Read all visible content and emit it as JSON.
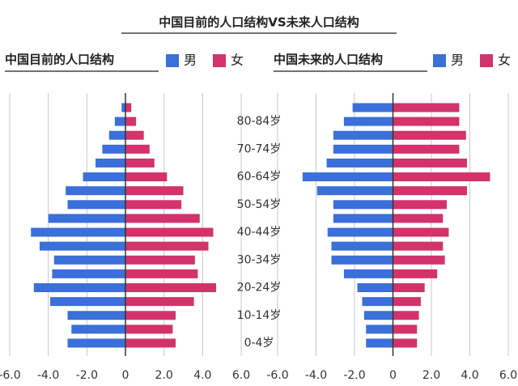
{
  "title": "中国目前的人口结构VS未来人口结构",
  "chart_data": [
    {
      "type": "bar",
      "orientation": "horizontal",
      "title": "中国目前的人口结构",
      "categories": [
        "0-4岁",
        null,
        "10-14岁",
        null,
        "20-24岁",
        null,
        "30-34岁",
        null,
        "40-44岁",
        null,
        "50-54岁",
        null,
        "60-64岁",
        null,
        "70-74岁",
        null,
        "80-84岁",
        null
      ],
      "series": [
        {
          "name": "男",
          "color": "#3b6fd9",
          "values": [
            -3.0,
            -2.8,
            -3.0,
            -3.9,
            -4.75,
            -3.8,
            -3.7,
            -4.45,
            -4.9,
            -4.0,
            -3.0,
            -3.1,
            -2.2,
            -1.55,
            -1.2,
            -0.85,
            -0.55,
            -0.2
          ]
        },
        {
          "name": "女",
          "color": "#d4326a",
          "values": [
            2.6,
            2.45,
            2.6,
            3.55,
            4.7,
            3.75,
            3.6,
            4.3,
            4.55,
            3.85,
            2.9,
            3.0,
            2.15,
            1.5,
            1.25,
            0.95,
            0.55,
            0.3
          ]
        }
      ],
      "xlim": [
        -6,
        6
      ],
      "xticks": [
        {
          "value": -6,
          "label": "-6.0"
        },
        {
          "value": -4,
          "label": "-4.0"
        },
        {
          "value": -2,
          "label": "-2.0"
        },
        0,
        {
          "value": 2,
          "label": "2.0"
        },
        {
          "value": 4,
          "label": "4.0"
        },
        {
          "value": 6,
          "label": "6.0"
        }
      ],
      "grid": true
    },
    {
      "type": "bar",
      "orientation": "horizontal",
      "title": "中国未来的人口结构",
      "series": [
        {
          "name": "男",
          "color": "#3b6fd9",
          "values": [
            -1.4,
            -1.4,
            -1.5,
            -1.6,
            -1.85,
            -2.55,
            -3.2,
            -3.2,
            -3.4,
            -3.1,
            -3.1,
            -3.95,
            -4.7,
            -3.45,
            -3.1,
            -3.1,
            -2.55,
            -2.1
          ]
        },
        {
          "name": "女",
          "color": "#d4326a",
          "values": [
            1.25,
            1.25,
            1.35,
            1.45,
            1.65,
            2.3,
            2.7,
            2.6,
            2.9,
            2.6,
            2.8,
            3.85,
            5.05,
            3.85,
            3.45,
            3.8,
            3.45,
            3.45
          ]
        }
      ],
      "xlim": [
        -6,
        6
      ],
      "xticks": [
        {
          "value": -6,
          "label": "-6.0"
        },
        {
          "value": -4,
          "label": "-4.0"
        },
        {
          "value": -2,
          "label": "-2.0"
        },
        0,
        {
          "value": 2,
          "label": "2.0"
        },
        {
          "value": 4,
          "label": "4.0"
        },
        {
          "value": 6,
          "label": "6.0"
        }
      ],
      "grid": true
    }
  ]
}
